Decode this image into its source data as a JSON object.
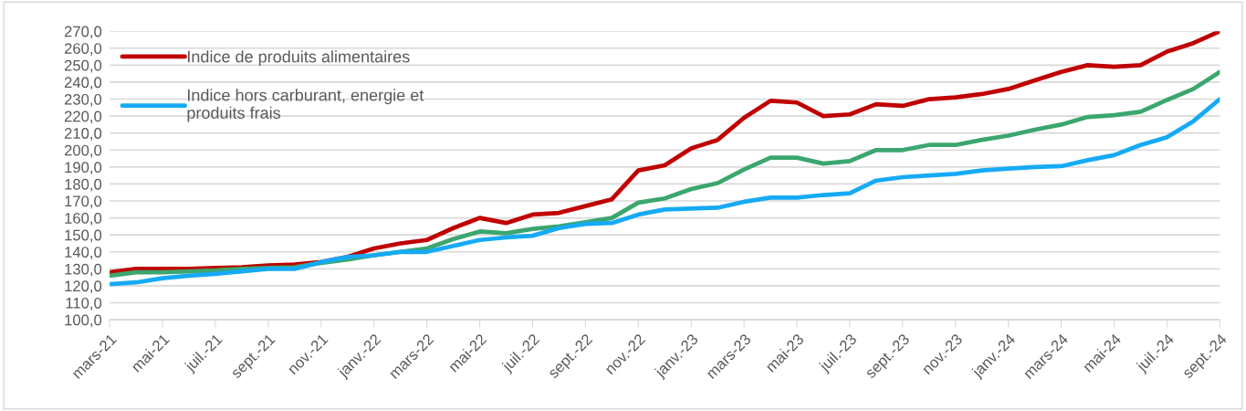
{
  "chart_data": {
    "type": "line",
    "categories": [
      "mars-21",
      null,
      "mai-21",
      null,
      "juil.-21",
      null,
      "sept.-21",
      null,
      "nov.-21",
      null,
      "janv.-22",
      null,
      "mars-22",
      null,
      "mai-22",
      null,
      "juil.-22",
      null,
      "sept.-22",
      null,
      "nov.-22",
      null,
      "janv.-23",
      null,
      "mars-23",
      null,
      "mai-23",
      null,
      "juil.-23",
      null,
      "sept.-23",
      null,
      "nov.-23",
      null,
      "janv.-24",
      null,
      "mars-24",
      null,
      "mai-24",
      null,
      "juil.-24",
      null,
      "sept.-24"
    ],
    "series": [
      {
        "name": "Indice de produits alimentaires",
        "color": "#c00000",
        "values": [
          128,
          130,
          130,
          130,
          130.5,
          131,
          132,
          132.5,
          134,
          137,
          142,
          145,
          147,
          154,
          160,
          157,
          162,
          163,
          167,
          171,
          188,
          191,
          201,
          206,
          219,
          229,
          228,
          220,
          221,
          227,
          226,
          230,
          231,
          233,
          236,
          241,
          246,
          250,
          249,
          250,
          258,
          263,
          270
        ]
      },
      {
        "color": "#3ba66f",
        "values": [
          126,
          128,
          128,
          128.5,
          129,
          130,
          130.5,
          131,
          133.5,
          135.5,
          138,
          140,
          142,
          147.5,
          152,
          151,
          153.5,
          155,
          157.5,
          160,
          169,
          171.5,
          177,
          180.5,
          188.5,
          195.5,
          195.5,
          192,
          193.5,
          200,
          200,
          203,
          203,
          206,
          208.5,
          212,
          215,
          219.5,
          220.5,
          222.5,
          229.5,
          236,
          246
        ]
      },
      {
        "name": "Indice hors carburant, energie et\nproduits frais",
        "color": "#16aaf5",
        "values": [
          121,
          122,
          124.5,
          126,
          127,
          128.5,
          130,
          130,
          134,
          137,
          138,
          140,
          140,
          143.5,
          147,
          148.5,
          149.5,
          154,
          156.5,
          157,
          162,
          165,
          165.5,
          166,
          169.5,
          172,
          172,
          173.5,
          174.5,
          182,
          184,
          185,
          186,
          188,
          189,
          190,
          190.5,
          194,
          197,
          203,
          207.5,
          217,
          230
        ]
      }
    ],
    "ylim": [
      100,
      270
    ],
    "yticks": [
      {
        "value": 100,
        "label": "100,0"
      },
      {
        "value": 110,
        "label": "110,0"
      },
      {
        "value": 120,
        "label": "120,0"
      },
      {
        "value": 130,
        "label": "130,0"
      },
      {
        "value": 140,
        "label": "140,0"
      },
      {
        "value": 150,
        "label": "150,0"
      },
      {
        "value": 160,
        "label": "160,0"
      },
      {
        "value": 170,
        "label": "170,0"
      },
      {
        "value": 180,
        "label": "180,0"
      },
      {
        "value": 190,
        "label": "190,0"
      },
      {
        "value": 200,
        "label": "200,0"
      },
      {
        "value": 210,
        "label": "210,0"
      },
      {
        "value": 220,
        "label": "220,0"
      },
      {
        "value": 230,
        "label": "230,0"
      },
      {
        "value": 240,
        "label": "240,0"
      },
      {
        "value": 250,
        "label": "250,0"
      },
      {
        "value": 260,
        "label": "260,0"
      },
      {
        "value": 270,
        "label": "270,0"
      }
    ],
    "grid": "y",
    "legend": "top left",
    "marker": "none",
    "line_style": "solid"
  }
}
